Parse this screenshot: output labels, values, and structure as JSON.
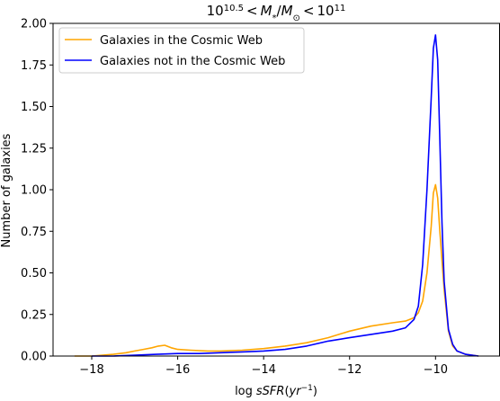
{
  "chart_data": {
    "type": "line",
    "title": "10^{10.5} < M_*/M_⊙ < 10^{11}",
    "title_parts": {
      "base1": "10",
      "exp1": "10.5",
      "lt1": "<",
      "mstar": "M",
      "mstar_sub": "*",
      "slash": "/",
      "msun": "M",
      "msun_sub": "⊙",
      "lt2": "<",
      "base2": "10",
      "exp2": "11"
    },
    "xlabel": "log sSFR(yr^{-1})",
    "xlabel_parts": {
      "log": "log",
      "var": "sSFR",
      "open": "(",
      "unit": "yr",
      "exp": "−1",
      "close": ")"
    },
    "ylabel": "Number of galaxies",
    "xlim": [
      -18.9,
      -8.5
    ],
    "ylim": [
      0,
      2.0
    ],
    "x_ticks": [
      -18,
      -16,
      -14,
      -12,
      -10
    ],
    "x_tick_labels": [
      "−18",
      "−16",
      "−14",
      "−12",
      "−10"
    ],
    "y_ticks": [
      0,
      0.25,
      0.5,
      0.75,
      1.0,
      1.25,
      1.5,
      1.75,
      2.0
    ],
    "y_tick_labels": [
      "0.00",
      "0.25",
      "0.50",
      "0.75",
      "1.00",
      "1.25",
      "1.50",
      "1.75",
      "2.00"
    ],
    "grid": false,
    "legend_position": "upper-left",
    "series": [
      {
        "name": "Galaxies in the Cosmic Web",
        "color": "#FFA500",
        "x": [
          -18.4,
          -18.0,
          -17.5,
          -17.2,
          -17.0,
          -16.8,
          -16.6,
          -16.45,
          -16.3,
          -16.15,
          -16.0,
          -15.7,
          -15.3,
          -15.0,
          -14.5,
          -14.0,
          -13.5,
          -13.0,
          -12.5,
          -12.0,
          -11.5,
          -11.0,
          -10.7,
          -10.5,
          -10.4,
          -10.3,
          -10.2,
          -10.1,
          -10.05,
          -10.0,
          -9.95,
          -9.9,
          -9.8,
          -9.7,
          -9.6,
          -9.5,
          -9.3,
          -9.0
        ],
        "y": [
          0.0,
          0.0,
          0.01,
          0.02,
          0.03,
          0.04,
          0.05,
          0.06,
          0.065,
          0.05,
          0.04,
          0.035,
          0.03,
          0.03,
          0.035,
          0.045,
          0.06,
          0.08,
          0.11,
          0.15,
          0.18,
          0.2,
          0.21,
          0.23,
          0.26,
          0.33,
          0.5,
          0.78,
          0.98,
          1.03,
          0.95,
          0.75,
          0.4,
          0.15,
          0.06,
          0.03,
          0.01,
          0.0
        ]
      },
      {
        "name": "Galaxies not in the Cosmic Web",
        "color": "#0000FF",
        "x": [
          -18.0,
          -17.5,
          -17.0,
          -16.5,
          -16.0,
          -15.5,
          -15.0,
          -14.5,
          -14.0,
          -13.5,
          -13.0,
          -12.5,
          -12.0,
          -11.5,
          -11.0,
          -10.7,
          -10.5,
          -10.4,
          -10.3,
          -10.2,
          -10.1,
          -10.05,
          -10.0,
          -9.95,
          -9.9,
          -9.85,
          -9.8,
          -9.7,
          -9.6,
          -9.5,
          -9.3,
          -9.0
        ],
        "y": [
          0.0,
          0.0,
          0.005,
          0.01,
          0.015,
          0.015,
          0.02,
          0.025,
          0.03,
          0.04,
          0.06,
          0.09,
          0.11,
          0.13,
          0.15,
          0.17,
          0.22,
          0.3,
          0.55,
          1.0,
          1.55,
          1.85,
          1.93,
          1.78,
          1.3,
          0.8,
          0.45,
          0.16,
          0.07,
          0.03,
          0.01,
          0.0
        ]
      }
    ]
  }
}
